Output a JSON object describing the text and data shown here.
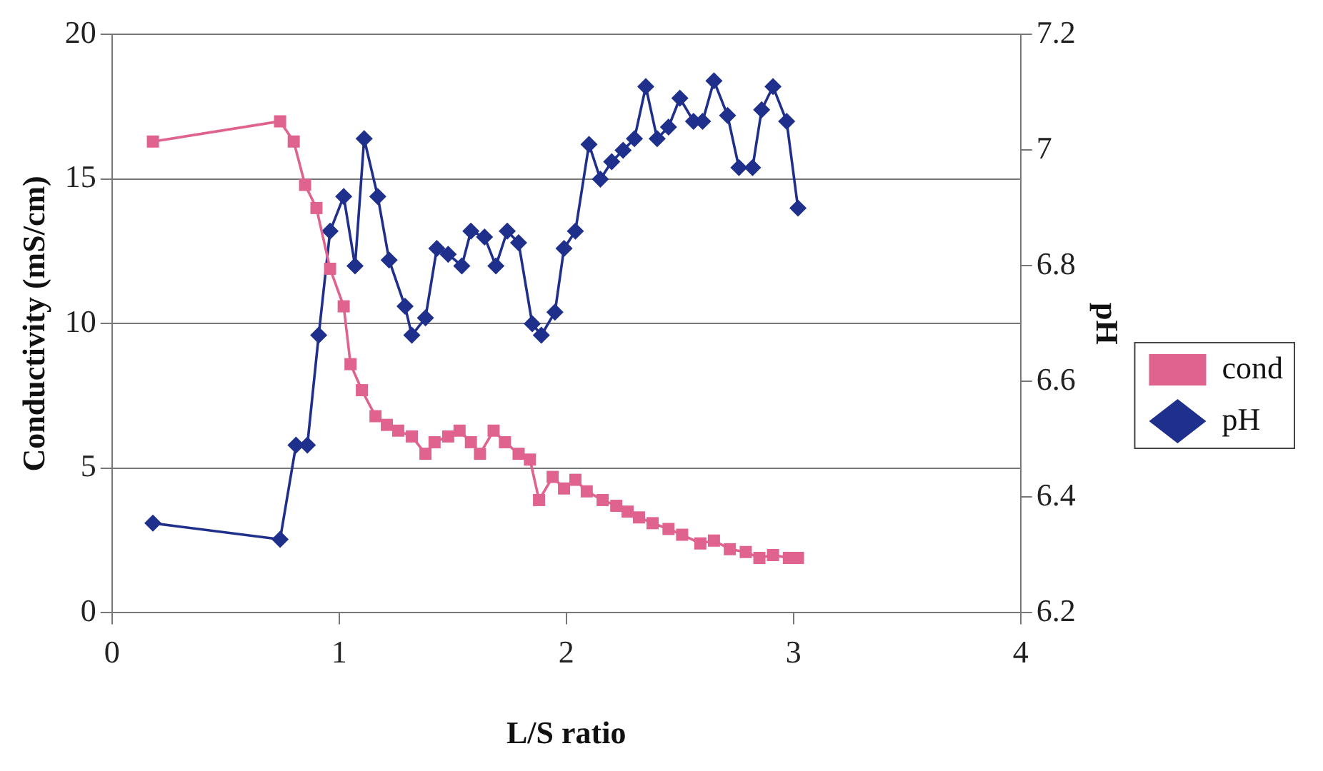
{
  "chart_data": {
    "type": "line",
    "xlabel": "L/S ratio",
    "ylabel": "Conductivity (mS/cm)",
    "y2label": "pH",
    "xlim": [
      0,
      4
    ],
    "xticks": [
      0,
      1,
      2,
      3,
      4
    ],
    "ylim": [
      0,
      20
    ],
    "yticks": [
      0,
      5,
      10,
      15,
      20
    ],
    "y2lim": [
      6.2,
      7.2
    ],
    "y2ticks": [
      6.2,
      6.4,
      6.6,
      6.8,
      7,
      7.2
    ],
    "grid": "y",
    "legend": "right",
    "series": [
      {
        "name": "cond",
        "color": "#e0628e",
        "marker": "square",
        "axis": "y",
        "x": [
          0.18,
          0.74,
          0.8,
          0.85,
          0.9,
          0.96,
          1.02,
          1.05,
          1.1,
          1.16,
          1.21,
          1.26,
          1.32,
          1.38,
          1.42,
          1.48,
          1.53,
          1.58,
          1.62,
          1.68,
          1.73,
          1.79,
          1.84,
          1.88,
          1.94,
          1.99,
          2.04,
          2.09,
          2.16,
          2.22,
          2.27,
          2.32,
          2.38,
          2.45,
          2.51,
          2.59,
          2.65,
          2.72,
          2.79,
          2.85,
          2.91,
          2.98,
          3.02
        ],
        "values": [
          16.3,
          17.0,
          16.3,
          14.8,
          14.0,
          11.9,
          10.6,
          8.6,
          7.7,
          6.8,
          6.5,
          6.3,
          6.1,
          5.5,
          5.9,
          6.1,
          6.3,
          5.9,
          5.5,
          6.3,
          5.9,
          5.5,
          5.3,
          3.9,
          4.7,
          4.3,
          4.6,
          4.2,
          3.9,
          3.7,
          3.5,
          3.3,
          3.1,
          2.9,
          2.7,
          2.4,
          2.5,
          2.2,
          2.1,
          1.9,
          2.0,
          1.9,
          1.9
        ]
      },
      {
        "name": "pH",
        "color": "#1f2f8c",
        "marker": "diamond",
        "axis": "y2",
        "x": [
          0.18,
          0.74,
          0.81,
          0.86,
          0.91,
          0.96,
          1.02,
          1.07,
          1.11,
          1.17,
          1.22,
          1.29,
          1.32,
          1.38,
          1.43,
          1.48,
          1.54,
          1.58,
          1.64,
          1.69,
          1.74,
          1.79,
          1.85,
          1.89,
          1.95,
          1.99,
          2.04,
          2.1,
          2.15,
          2.2,
          2.25,
          2.3,
          2.35,
          2.4,
          2.45,
          2.5,
          2.56,
          2.6,
          2.65,
          2.71,
          2.76,
          2.82,
          2.86,
          2.91,
          2.97,
          3.02
        ],
        "values": [
          6.355,
          6.327,
          6.49,
          6.49,
          6.68,
          6.86,
          6.92,
          6.8,
          7.02,
          6.92,
          6.81,
          6.73,
          6.68,
          6.71,
          6.83,
          6.82,
          6.8,
          6.86,
          6.85,
          6.8,
          6.86,
          6.84,
          6.7,
          6.68,
          6.72,
          6.83,
          6.86,
          7.01,
          6.95,
          6.98,
          7.0,
          7.02,
          7.11,
          7.02,
          7.04,
          7.09,
          7.05,
          7.05,
          7.12,
          7.06,
          6.97,
          6.97,
          7.07,
          7.11,
          7.05,
          6.9
        ]
      }
    ]
  }
}
